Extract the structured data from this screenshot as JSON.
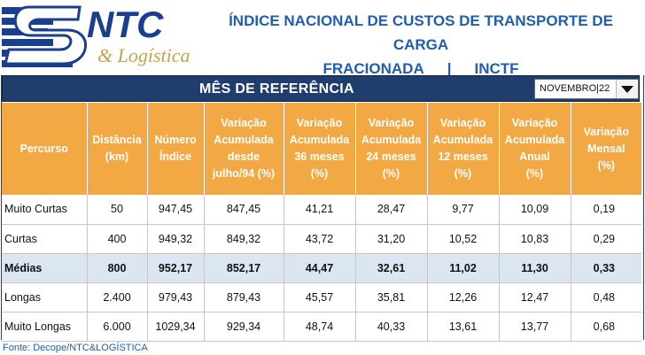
{
  "logo": {
    "brand": "NTC",
    "subtitle": "& Logística"
  },
  "title": {
    "line1": "ÍNDICE NACIONAL DE CUSTOS DE TRANSPORTE DE CARGA",
    "line2_left": "FRACIONADA",
    "line2_sep": "|",
    "line2_right": "INCTF"
  },
  "bar": {
    "title": "MÊS DE REFERÊNCIA"
  },
  "month_select": {
    "value": "NOVEMBRO|22"
  },
  "table": {
    "columns": [
      [
        "Percurso"
      ],
      [
        "Distância",
        "(km)"
      ],
      [
        "Número",
        "Índice"
      ],
      [
        "Variação",
        "Acumulada",
        "desde",
        "julho/94   (%)"
      ],
      [
        "Variação",
        "Acumulada",
        "36 meses",
        "(%)"
      ],
      [
        "Variação",
        "Acumulada",
        "24 meses",
        "(%)"
      ],
      [
        "Variação",
        "Acumulada",
        "12 meses",
        "(%)"
      ],
      [
        "Variação",
        "Acumulada",
        "Anual",
        "(%)"
      ],
      [
        "Variação",
        "Mensal",
        "(%)"
      ]
    ],
    "rows": [
      [
        "Muito Curtas",
        "50",
        "947,45",
        "847,45",
        "41,21",
        "28,47",
        "9,77",
        "10,09",
        "0,19"
      ],
      [
        "Curtas",
        "400",
        "949,32",
        "849,32",
        "43,72",
        "31,20",
        "10,52",
        "10,83",
        "0,29"
      ],
      [
        "Médias",
        "800",
        "952,17",
        "852,17",
        "44,47",
        "32,61",
        "11,02",
        "11,30",
        "0,33"
      ],
      [
        "Longas",
        "2.400",
        "979,43",
        "879,43",
        "45,57",
        "35,81",
        "12,26",
        "12,47",
        "0,48"
      ],
      [
        "Muito Longas",
        "6.000",
        "1029,34",
        "929,34",
        "48,74",
        "40,33",
        "13,61",
        "13,77",
        "0,68"
      ]
    ],
    "highlight_row": 2
  },
  "source": "Fonte: Decope/NTC&LOGÍSTICA",
  "colors": {
    "header_bg": "#f2a944",
    "bar_bg": "#1f3e6e",
    "title_blue": "#1f5fae",
    "highlight": "#dbe6f2"
  }
}
